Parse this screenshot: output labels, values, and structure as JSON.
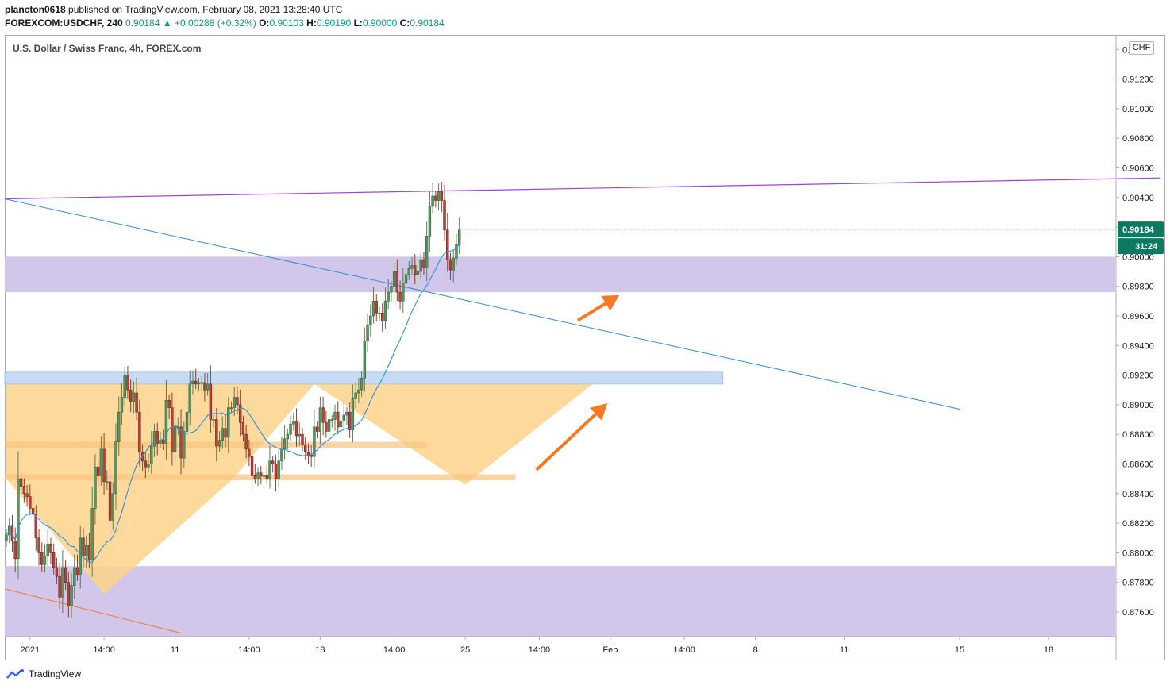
{
  "header": {
    "author": "plancton0618",
    "published": "published on TradingView.com, February 08, 2021 13:28:40 UTC",
    "symbol": "FOREXCOM:USDCHF, 240",
    "last": "0.90184",
    "change": "+0.00288 (+0.32%)",
    "o_label": "O:",
    "o_value": "0.90103",
    "h_label": "H:",
    "h_value": "0.90190",
    "l_label": "L:",
    "l_value": "0.90000",
    "c_label": "C:",
    "c_value": "0.90184"
  },
  "chart_title": "U.S. Dollar / Swiss Franc, 4h, FOREX.com",
  "currency_button": "CHF",
  "footer": {
    "brand": "TradingView"
  },
  "colors": {
    "bull": "#26a69a",
    "bull_body": "#6b8e5a",
    "bear": "#b2453a",
    "ma": "#2f8fd8",
    "zone": "#d2c6ea",
    "blue_zone": "#c3d8f5",
    "pattern": "#fdd38a",
    "resistance_line": "#a33fdd",
    "trend_line": "#2f8fd8",
    "arrow": "#f57a22",
    "price_tag": "#0b7a61"
  },
  "chart_data": {
    "type": "candlestick",
    "title": "U.S. Dollar / Swiss Franc, 4h, FOREX.com",
    "ylim": [
      0.8744,
      0.9158
    ],
    "y_ticks": [
      "0.87600",
      "0.87800",
      "0.88000",
      "0.88200",
      "0.88400",
      "0.88600",
      "0.88800",
      "0.89000",
      "0.89200",
      "0.89400",
      "0.89600",
      "0.89800",
      "0.90000",
      "0.90200",
      "0.90400",
      "0.90600",
      "0.90800",
      "0.91000",
      "0.91200",
      "0.91400"
    ],
    "x_ticks": [
      {
        "label": "2021",
        "bar": 8
      },
      {
        "label": "14:00",
        "bar": 33
      },
      {
        "label": "11",
        "bar": 57
      },
      {
        "label": "14:00",
        "bar": 82
      },
      {
        "label": "18",
        "bar": 106
      },
      {
        "label": "14:00",
        "bar": 131
      },
      {
        "label": "25",
        "bar": 155
      },
      {
        "label": "14:00",
        "bar": 180
      },
      {
        "label": "Feb",
        "bar": 204
      },
      {
        "label": "14:00",
        "bar": 229
      },
      {
        "label": "8",
        "bar": 253
      },
      {
        "label": "11",
        "bar": 283
      },
      {
        "label": "15",
        "bar": 322
      },
      {
        "label": "18",
        "bar": 352
      }
    ],
    "last_price": "0.90184",
    "countdown": "31:24",
    "closes": [
      0.8812,
      0.8818,
      0.8808,
      0.8796,
      0.885,
      0.8845,
      0.884,
      0.8838,
      0.883,
      0.8826,
      0.881,
      0.88,
      0.8792,
      0.8798,
      0.8806,
      0.88,
      0.879,
      0.8784,
      0.877,
      0.879,
      0.878,
      0.8764,
      0.8778,
      0.879,
      0.8785,
      0.881,
      0.8798,
      0.8805,
      0.8795,
      0.883,
      0.8858,
      0.8852,
      0.887,
      0.8848,
      0.8848,
      0.8822,
      0.884,
      0.8875,
      0.8895,
      0.8905,
      0.892,
      0.891,
      0.8902,
      0.8908,
      0.8895,
      0.8868,
      0.8862,
      0.8858,
      0.886,
      0.8872,
      0.8882,
      0.8874,
      0.8876,
      0.8874,
      0.8903,
      0.8898,
      0.8868,
      0.8885,
      0.8885,
      0.8864,
      0.8882,
      0.8895,
      0.8914,
      0.8916,
      0.8914,
      0.8915,
      0.8915,
      0.891,
      0.8914,
      0.889,
      0.889,
      0.8872,
      0.8876,
      0.8884,
      0.8878,
      0.8898,
      0.8898,
      0.8905,
      0.89,
      0.8888,
      0.888,
      0.887,
      0.8865,
      0.8852,
      0.885,
      0.8854,
      0.8852,
      0.8852,
      0.885,
      0.8862,
      0.886,
      0.885,
      0.8862,
      0.887,
      0.8877,
      0.888,
      0.8887,
      0.8889,
      0.8879,
      0.888,
      0.8873,
      0.8868,
      0.8866,
      0.8865,
      0.8885,
      0.8882,
      0.8898,
      0.8888,
      0.8882,
      0.889,
      0.889,
      0.8895,
      0.8885,
      0.8889,
      0.8893,
      0.8895,
      0.8883,
      0.8904,
      0.8908,
      0.891,
      0.8918,
      0.8943,
      0.8954,
      0.896,
      0.897,
      0.8962,
      0.8962,
      0.8957,
      0.897,
      0.8976,
      0.898,
      0.899,
      0.8976,
      0.897,
      0.8982,
      0.8988,
      0.8992,
      0.8994,
      0.8988,
      0.899,
      0.8998,
      0.8993,
      0.9014,
      0.9034,
      0.9041,
      0.9038,
      0.9044,
      0.9038,
      0.9018,
      0.8998,
      0.8991,
      0.8999,
      0.9008,
      0.9018
    ]
  }
}
